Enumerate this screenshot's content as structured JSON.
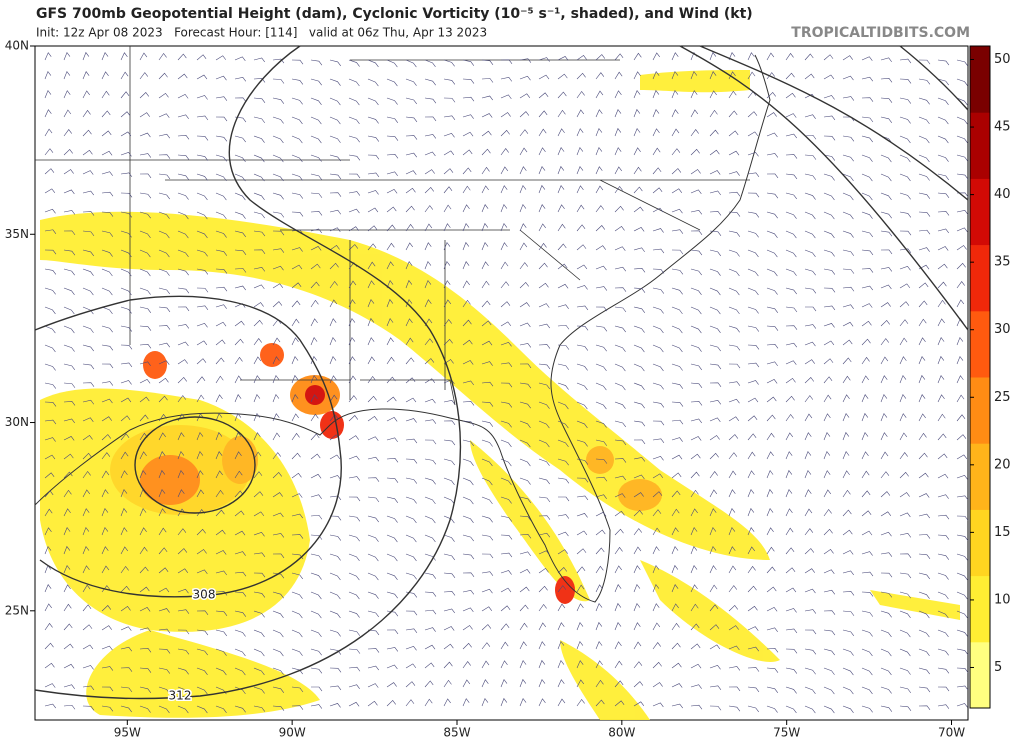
{
  "header": {
    "title": "GFS 700mb Geopotential Height (dam), Cyclonic Vorticity (10⁻⁵ s⁻¹, shaded), and Wind (kt)",
    "subtitle": "Init: 12z Apr 08 2023   Forecast Hour: [114]   valid at 06z Thu, Apr 13 2023",
    "site": "TROPICALTIDBITS.COM"
  },
  "map": {
    "lonlim": [
      -97.8,
      -69.5
    ],
    "latlim": [
      22.1,
      40
    ],
    "lonticks": [
      {
        "value": -95,
        "label": "95W"
      },
      {
        "value": -90,
        "label": "90W"
      },
      {
        "value": -85,
        "label": "85W"
      },
      {
        "value": -80,
        "label": "80W"
      },
      {
        "value": -75,
        "label": "75W"
      },
      {
        "value": -70,
        "label": "70W"
      }
    ],
    "latticks": [
      {
        "value": 40,
        "label": "40N"
      },
      {
        "value": 35,
        "label": "35N"
      },
      {
        "value": 30,
        "label": "30N"
      },
      {
        "value": 25,
        "label": "25N"
      }
    ],
    "contour_labels": [
      308,
      312
    ]
  },
  "colorbar": {
    "lim": [
      2,
      51
    ],
    "ticks": [
      5,
      10,
      15,
      20,
      25,
      30,
      35,
      40,
      45,
      50
    ],
    "colors": [
      "#ffff80",
      "#ffee33",
      "#ffd520",
      "#ffb41a",
      "#ff8c14",
      "#ff5a0f",
      "#f0280a",
      "#d20a05",
      "#aa0000",
      "#7a0000"
    ]
  }
}
